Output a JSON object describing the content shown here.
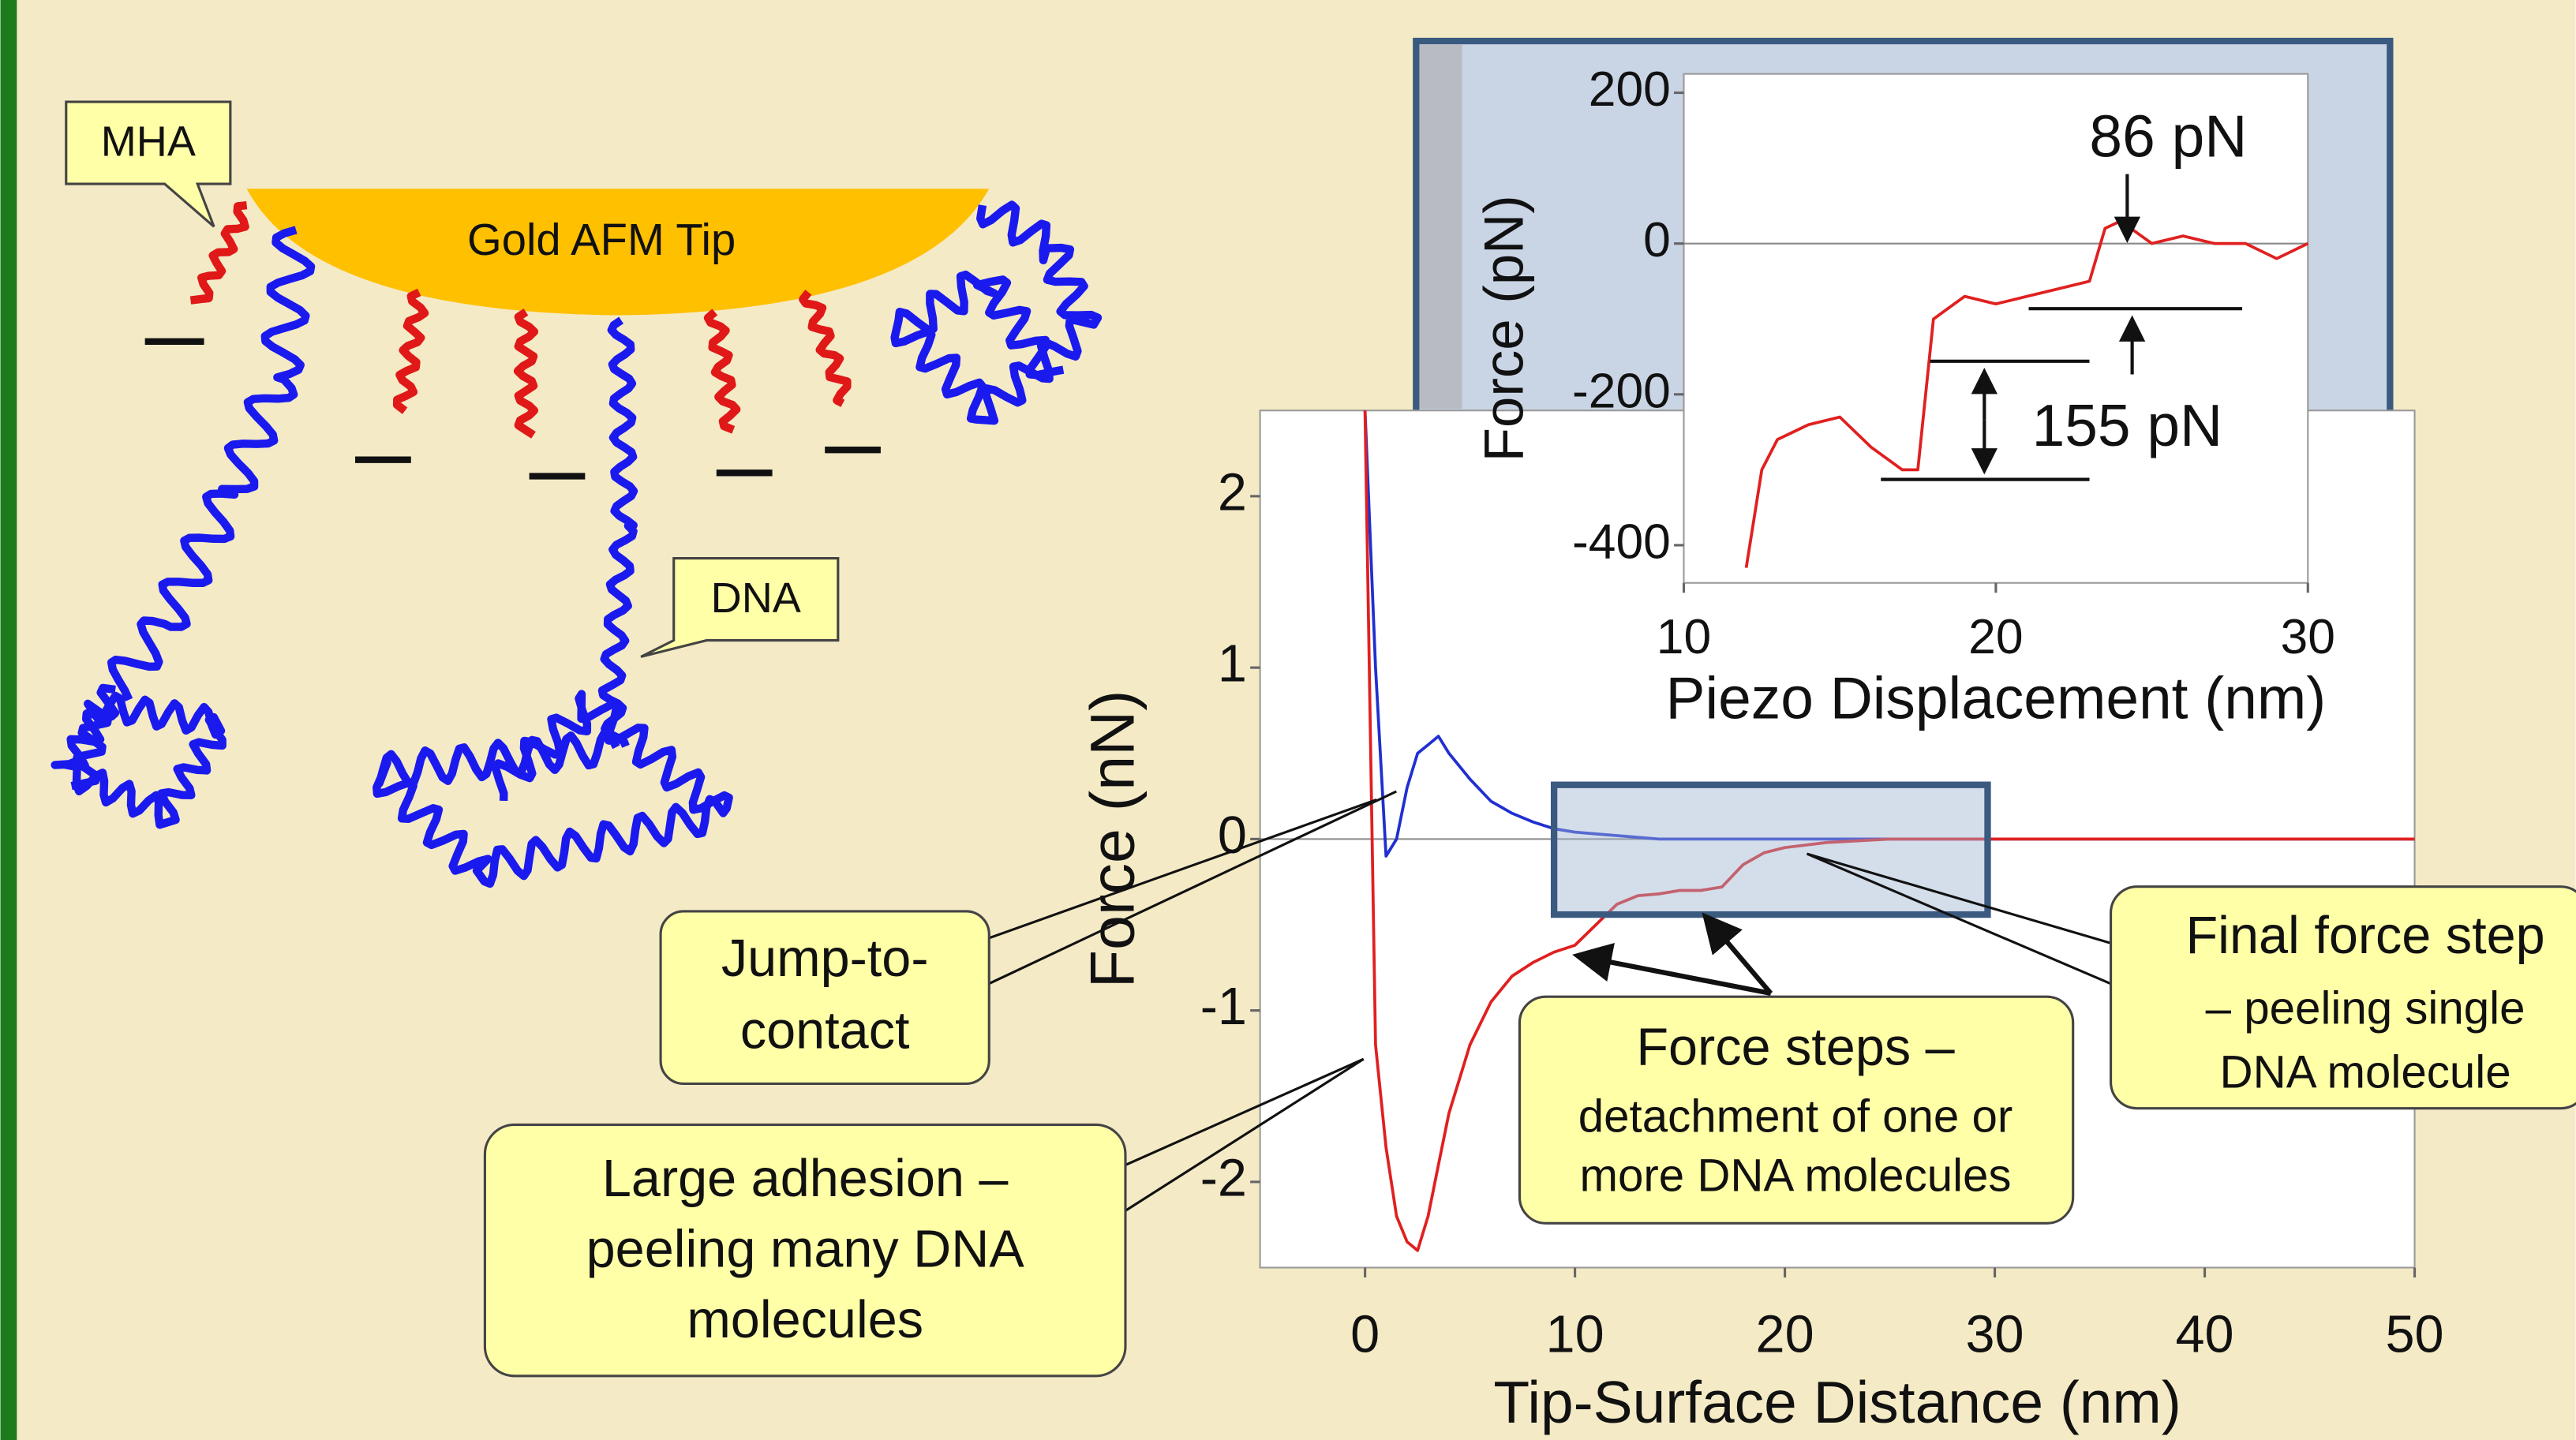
{
  "chart_data": [
    {
      "type": "line",
      "x_label": "Tip-Surface Distance (nm)",
      "y_label": "Force (nN)",
      "x": [
        0,
        0.5,
        1,
        1.5,
        2,
        2.5,
        3,
        3.5,
        4,
        5,
        6,
        7,
        8,
        9,
        10,
        11,
        12,
        13,
        14,
        15,
        16,
        17,
        18,
        19,
        20,
        22,
        25,
        30,
        35,
        40,
        45,
        50
      ],
      "series": [
        {
          "color": "#2030d0",
          "values": [
            2.5,
            1.0,
            -0.1,
            0.0,
            0.3,
            0.5,
            0.55,
            0.6,
            0.5,
            0.35,
            0.22,
            0.15,
            0.1,
            0.06,
            0.04,
            0.03,
            0.02,
            0.01,
            0,
            0,
            0,
            0,
            0,
            0,
            0,
            0,
            0,
            0,
            0,
            0,
            0,
            0
          ]
        },
        {
          "color": "#e02020",
          "values": [
            2.5,
            -1.2,
            -1.8,
            -2.2,
            -2.35,
            -2.4,
            -2.2,
            -1.9,
            -1.6,
            -1.2,
            -0.95,
            -0.8,
            -0.72,
            -0.66,
            -0.62,
            -0.5,
            -0.38,
            -0.33,
            -0.32,
            -0.3,
            -0.3,
            -0.28,
            -0.15,
            -0.08,
            -0.05,
            -0.02,
            0,
            0,
            0,
            0,
            0,
            0
          ]
        }
      ],
      "xlim": [
        -5,
        50
      ],
      "xticks": [
        0,
        10,
        20,
        30,
        40,
        50
      ],
      "ylim": [
        -2.5,
        2.5
      ],
      "yticks": [
        2,
        1,
        0,
        -1,
        -2
      ]
    },
    {
      "type": "line",
      "x_label": "Piezo Displacement (nm)",
      "y_label": "Force (pN)",
      "x": [
        12,
        12.5,
        13,
        14,
        15,
        16,
        17,
        17.5,
        18,
        19,
        20,
        21,
        22,
        23,
        23.5,
        24,
        25,
        26,
        27,
        28,
        29,
        30
      ],
      "series": [
        {
          "color": "#e02020",
          "values": [
            -430,
            -300,
            -260,
            -240,
            -230,
            -270,
            -300,
            -300,
            -100,
            -70,
            -80,
            -70,
            -60,
            -50,
            20,
            30,
            0,
            10,
            0,
            0,
            -20,
            0
          ]
        }
      ],
      "annotations": [
        "86 pN",
        "155 pN"
      ],
      "xlim": [
        10,
        30
      ],
      "xticks": [
        10,
        20,
        30
      ],
      "ylim": [
        -450,
        225
      ],
      "yticks": [
        200,
        0,
        -200,
        -400
      ]
    }
  ],
  "diagram": {
    "labels": [
      "MHA",
      "Gold AFM Tip",
      "DNA"
    ]
  },
  "callouts": [
    {
      "lines": [
        "Jump-to-",
        "contact"
      ]
    },
    {
      "lines": [
        "Large adhesion –",
        "peeling many DNA",
        "molecules"
      ]
    },
    {
      "lines": [
        "Force steps –",
        "detachment of one or",
        "more DNA molecules"
      ]
    },
    {
      "lines": [
        "Final force step",
        "– peeling single",
        "DNA molecule"
      ]
    }
  ]
}
